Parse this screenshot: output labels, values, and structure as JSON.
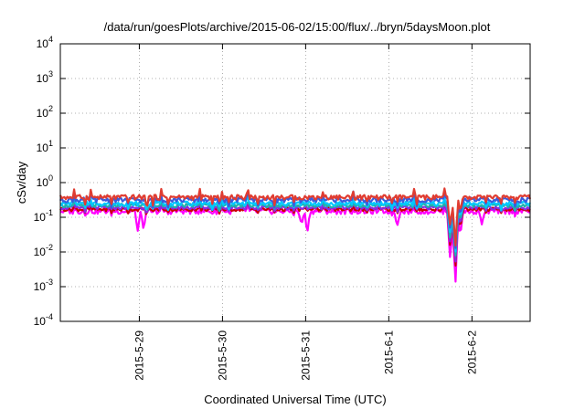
{
  "chart_data": {
    "type": "line",
    "title": "/data/run/goesPlots/archive/2015-06-02/15:00/flux/../bryn/5daysMoon.plot",
    "xlabel": "Coordinated Universal Time (UTC)",
    "ylabel": "cSv/day",
    "yscale": "log",
    "ylim": [
      0.0001,
      10000
    ],
    "xlim": [
      -0.95,
      4.7
    ],
    "grid": true,
    "y_ticks": [
      {
        "value": 0.0001,
        "base": "10",
        "exp": "-4"
      },
      {
        "value": 0.001,
        "base": "10",
        "exp": "-3"
      },
      {
        "value": 0.01,
        "base": "10",
        "exp": "-2"
      },
      {
        "value": 0.1,
        "base": "10",
        "exp": "-1"
      },
      {
        "value": 1,
        "base": "10",
        "exp": "0"
      },
      {
        "value": 10,
        "base": "10",
        "exp": "1"
      },
      {
        "value": 100,
        "base": "10",
        "exp": "2"
      },
      {
        "value": 1000,
        "base": "10",
        "exp": "3"
      },
      {
        "value": 10000,
        "base": "10",
        "exp": "4"
      }
    ],
    "x_ticks": [
      {
        "value": 0,
        "label": "2015-5-29"
      },
      {
        "value": 1,
        "label": "2015-5-30"
      },
      {
        "value": 2,
        "label": "2015-5-31"
      },
      {
        "value": 3,
        "label": "2015-6-1"
      },
      {
        "value": 4,
        "label": "2015-6-2"
      }
    ],
    "series": [
      {
        "color": "#ff00ff",
        "base": 0.15,
        "amp": 0.18,
        "spike_factor": 0.25,
        "dips": [
          [
            -0.02,
            0.04
          ],
          [
            0.05,
            0.045
          ],
          [
            1.95,
            0.06
          ],
          [
            2.02,
            0.035
          ],
          [
            3.1,
            0.055
          ],
          [
            3.74,
            0.005
          ],
          [
            3.8,
            0.00095
          ],
          [
            3.86,
            0.03
          ],
          [
            4.12,
            0.06
          ]
        ]
      },
      {
        "color": "#cc0000",
        "base": 0.17,
        "amp": 0.12,
        "spike_factor": 0.3,
        "dips": [
          [
            3.74,
            0.012
          ],
          [
            3.8,
            0.003
          ],
          [
            3.86,
            0.05
          ]
        ]
      },
      {
        "color": "#8a2be2",
        "base": 0.19,
        "amp": 0.12,
        "spike_factor": 0.3,
        "dips": [
          [
            3.74,
            0.015
          ],
          [
            3.8,
            0.004
          ],
          [
            3.86,
            0.06
          ]
        ]
      },
      {
        "color": "#20b2aa",
        "base": 0.22,
        "amp": 0.12,
        "spike_factor": 0.35,
        "dips": [
          [
            3.74,
            0.02
          ],
          [
            3.8,
            0.006
          ],
          [
            3.86,
            0.08
          ]
        ]
      },
      {
        "color": "#00c8ff",
        "base": 0.25,
        "amp": 0.14,
        "spike_factor": 0.45,
        "dips": [
          [
            3.74,
            0.03
          ],
          [
            3.8,
            0.008
          ],
          [
            3.86,
            0.1
          ]
        ]
      },
      {
        "color": "#3b5bdb",
        "base": 0.32,
        "amp": 0.16,
        "spike_factor": 0.5,
        "dips": [
          [
            3.74,
            0.04
          ],
          [
            3.8,
            0.01
          ],
          [
            3.86,
            0.12
          ]
        ]
      },
      {
        "color": "#e03c31",
        "base": 0.38,
        "amp": 0.16,
        "spike_factor": 0.55,
        "dips": [
          [
            3.74,
            0.05
          ],
          [
            3.8,
            0.012
          ],
          [
            3.86,
            0.15
          ]
        ]
      }
    ]
  }
}
